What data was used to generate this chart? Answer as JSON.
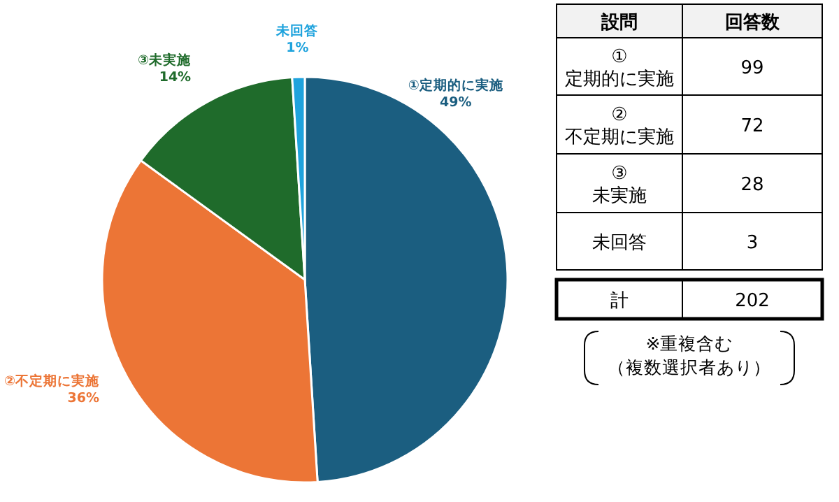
{
  "chart_data": [
    {
      "type": "pie",
      "categories": [
        "①定期的に実施",
        "②不定期に実施",
        "③未実施",
        "未回答"
      ],
      "values": [
        49,
        36,
        14,
        1
      ],
      "colors": [
        "#1b5e80",
        "#ec7536",
        "#1f6b2b",
        "#1fa3dd"
      ],
      "value_labels": [
        "49%",
        "36%",
        "14%",
        "1%"
      ]
    },
    {
      "type": "other",
      "annotations": [
        "設問",
        "回答数",
        "①\n定期的に実施",
        "99",
        "②\n不定期に実施",
        "72",
        "③\n未実施",
        "28",
        "未回答",
        "3",
        "計",
        "202",
        "※重複含む",
        "（複数選択者あり）"
      ]
    }
  ]
}
